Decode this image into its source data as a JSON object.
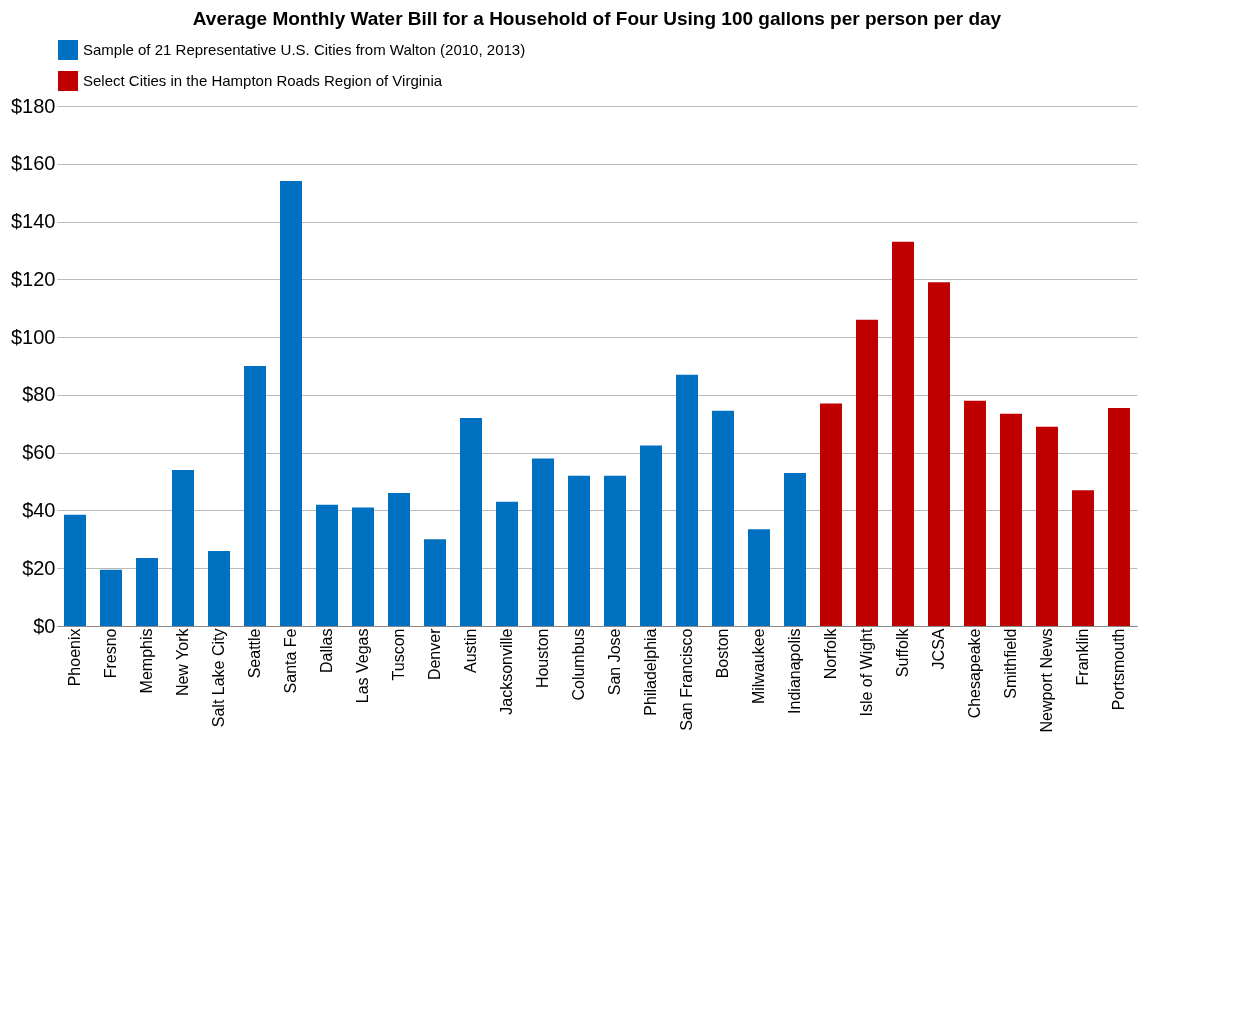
{
  "chart_data": {
    "type": "bar",
    "title": "Average Monthly Water Bill for a Household of Four Using 100 gallons per person per day",
    "categories": [
      "Phoenix",
      "Fresno",
      "Memphis",
      "New York",
      "Salt Lake City",
      "Seattle",
      "Santa Fe",
      "Dallas",
      "Las Vegas",
      "Tuscon",
      "Denver",
      "Austin",
      "Jacksonville",
      "Houston",
      "Columbus",
      "San Jose",
      "Philadelphia",
      "San Francisco",
      "Boston",
      "Milwaukee",
      "Indianapolis",
      "Norfolk",
      "Isle of Wight",
      "Suffolk",
      "JCSA",
      "Chesapeake",
      "Smithfield",
      "Newport News",
      "Franklin",
      "Portsmouth"
    ],
    "series": [
      {
        "name": "Sample of 21 Representative U.S. Cities from Walton (2010, 2013)",
        "color": "#0070c0",
        "values": [
          38.5,
          19.5,
          23.5,
          54,
          26,
          90,
          154,
          42,
          41,
          46,
          30,
          72,
          43,
          58,
          52,
          52,
          62.5,
          87,
          74.5,
          33.5,
          53,
          null,
          null,
          null,
          null,
          null,
          null,
          null,
          null,
          null
        ]
      },
      {
        "name": "Select Cities in the Hampton Roads Region of Virginia",
        "color": "#c00000",
        "values": [
          null,
          null,
          null,
          null,
          null,
          null,
          null,
          null,
          null,
          null,
          null,
          null,
          null,
          null,
          null,
          null,
          null,
          null,
          null,
          null,
          null,
          77,
          106,
          133,
          119,
          78,
          73.5,
          69,
          47,
          75.5
        ]
      }
    ],
    "ylim": [
      0,
      180
    ],
    "yticks": [
      {
        "value": 0,
        "label": "$0"
      },
      {
        "value": 20,
        "label": "$20"
      },
      {
        "value": 40,
        "label": "$40"
      },
      {
        "value": 60,
        "label": "$60"
      },
      {
        "value": 80,
        "label": "$80"
      },
      {
        "value": 100,
        "label": "$100"
      },
      {
        "value": 120,
        "label": "$120"
      },
      {
        "value": 140,
        "label": "$140"
      },
      {
        "value": 160,
        "label": "$160"
      },
      {
        "value": 180,
        "label": "$180"
      }
    ],
    "grid": "y",
    "legend": "top left"
  }
}
